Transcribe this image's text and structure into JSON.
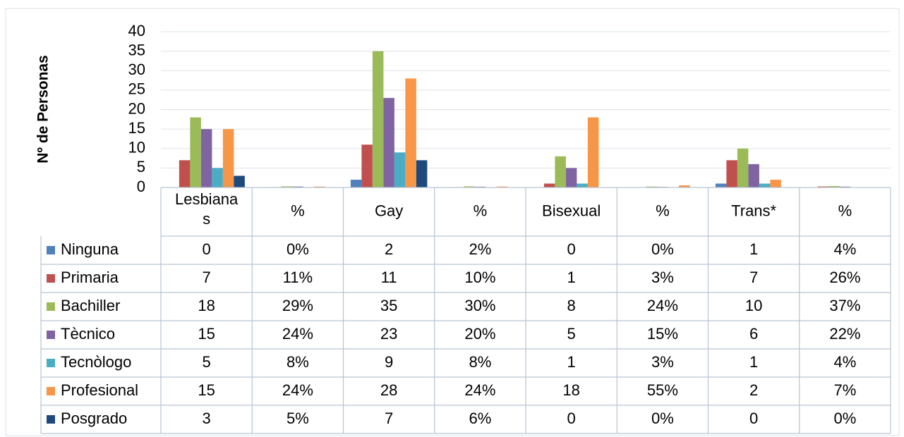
{
  "chart_data": {
    "type": "bar",
    "y_label": "Nº de Personas",
    "categories": [
      "Lesbianas",
      "%",
      "Gay",
      "%",
      "Bisexual",
      "%",
      "Trans*",
      "%"
    ],
    "ylim": [
      0,
      40
    ],
    "yticks": [
      0,
      5,
      10,
      15,
      20,
      25,
      30,
      35,
      40
    ],
    "grid": true,
    "series": [
      {
        "name": "Ninguna",
        "color": "#4f81bd",
        "values": [
          0,
          0,
          2,
          0.02,
          0,
          0,
          1,
          0.04
        ],
        "value_labels": [
          "0",
          "0%",
          "2",
          "2%",
          "0",
          "0%",
          "1",
          "4%"
        ]
      },
      {
        "name": "Primaria",
        "color": "#c0504d",
        "values": [
          7,
          0.11,
          11,
          0.1,
          1,
          0.03,
          7,
          0.26
        ],
        "value_labels": [
          "7",
          "11%",
          "11",
          "10%",
          "1",
          "3%",
          "7",
          "26%"
        ]
      },
      {
        "name": "Bachiller",
        "color": "#9bbb59",
        "values": [
          18,
          0.29,
          35,
          0.3,
          8,
          0.24,
          10,
          0.37
        ],
        "value_labels": [
          "18",
          "29%",
          "35",
          "30%",
          "8",
          "24%",
          "10",
          "37%"
        ]
      },
      {
        "name": "Tècnico",
        "color": "#8064a2",
        "values": [
          15,
          0.24,
          23,
          0.2,
          5,
          0.15,
          6,
          0.22
        ],
        "value_labels": [
          "15",
          "24%",
          "23",
          "20%",
          "5",
          "15%",
          "6",
          "22%"
        ]
      },
      {
        "name": "Tecnòlogo",
        "color": "#4bacc6",
        "values": [
          5,
          0.08,
          9,
          0.08,
          1,
          0.03,
          1,
          0.04
        ],
        "value_labels": [
          "5",
          "8%",
          "9",
          "8%",
          "1",
          "3%",
          "1",
          "4%"
        ]
      },
      {
        "name": "Profesional",
        "color": "#f79646",
        "values": [
          15,
          0.24,
          28,
          0.24,
          18,
          0.55,
          2,
          0.07
        ],
        "value_labels": [
          "15",
          "24%",
          "28",
          "24%",
          "18",
          "55%",
          "2",
          "7%"
        ]
      },
      {
        "name": "Posgrado",
        "color": "#1f497d",
        "values": [
          3,
          0.05,
          7,
          0.06,
          0,
          0,
          0,
          0
        ],
        "value_labels": [
          "3",
          "5%",
          "7",
          "6%",
          "0",
          "0%",
          "0",
          "0%"
        ]
      }
    ]
  }
}
